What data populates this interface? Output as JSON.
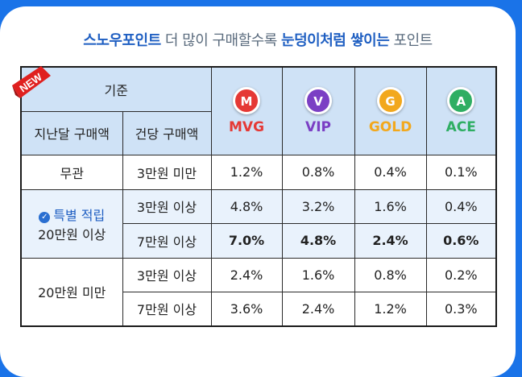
{
  "headline": {
    "brand": "스노우포인트",
    "part1": "더 많이 구매할수록",
    "highlight": "눈덩이처럼 쌓이는",
    "part2": "포인트"
  },
  "badge": "NEW",
  "header": {
    "criteria": "기준",
    "last_month": "지난달 구매액",
    "per_order": "건당 구매액"
  },
  "tiers": [
    {
      "name": "MVG",
      "letter": "M",
      "color": "#e53935"
    },
    {
      "name": "VIP",
      "letter": "V",
      "color": "#7b3fc4"
    },
    {
      "name": "GOLD",
      "letter": "G",
      "color": "#f2a81d"
    },
    {
      "name": "ACE",
      "letter": "A",
      "color": "#2fae63"
    }
  ],
  "groups": {
    "none": "무관",
    "special_label": "특별 적립",
    "special_amount": "20만원 이상",
    "under": "20만원 미만"
  },
  "rows": [
    {
      "per_order": "3만원 미만",
      "rates": [
        "1.2%",
        "0.8%",
        "0.4%",
        "0.1%"
      ]
    },
    {
      "per_order": "3만원 이상",
      "rates": [
        "4.8%",
        "3.2%",
        "1.6%",
        "0.4%"
      ]
    },
    {
      "per_order": "7만원 이상",
      "rates": [
        "7.0%",
        "4.8%",
        "2.4%",
        "0.6%"
      ]
    },
    {
      "per_order": "3만원 이상",
      "rates": [
        "2.4%",
        "1.6%",
        "0.8%",
        "0.2%"
      ]
    },
    {
      "per_order": "7만원 이상",
      "rates": [
        "3.6%",
        "2.4%",
        "1.2%",
        "0.3%"
      ]
    }
  ]
}
